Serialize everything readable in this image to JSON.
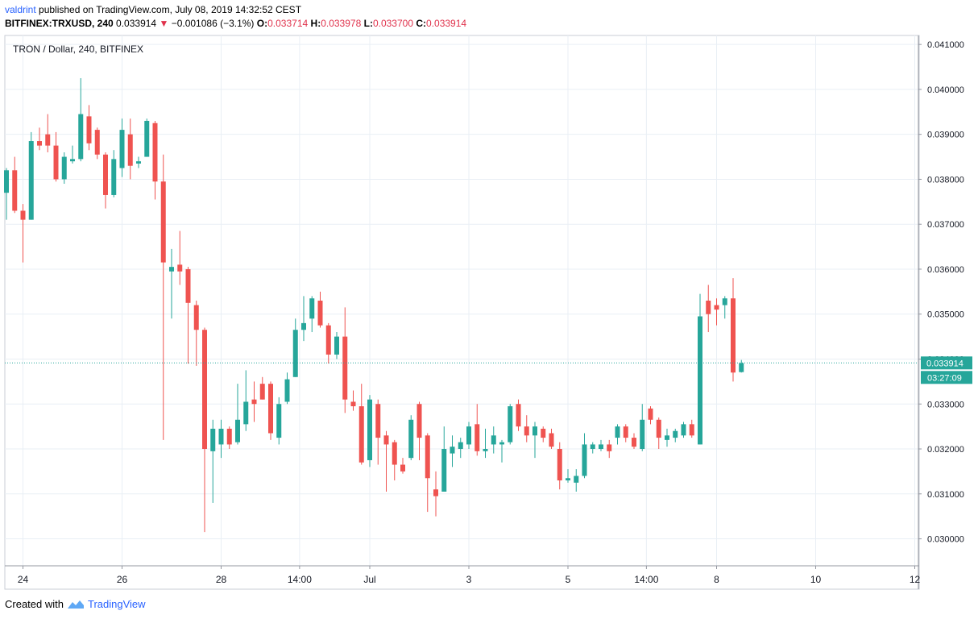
{
  "header": {
    "user": "valdrint",
    "published_text": "published on TradingView.com, July 08, 2019 14:32:52 CEST",
    "symbol": "BITFINEX:TRXUSD, 240",
    "last": "0.033914",
    "change": "−0.001086 (−3.1%)",
    "o_label": "O:",
    "o_value": "0.033714",
    "h_label": "H:",
    "h_value": "0.033978",
    "l_label": "L:",
    "l_value": "0.033700",
    "c_label": "C:",
    "c_value": "0.033914"
  },
  "chart_title": "TRON / Dollar, 240, BITFINEX",
  "price_tag": {
    "price": "0.033914",
    "countdown": "03:27:09"
  },
  "footer": {
    "created_with": "Created with",
    "brand": "TradingView"
  },
  "colors": {
    "up": "#26a69a",
    "down": "#ef5350",
    "grid": "#e9eff5",
    "axis": "#9598a1"
  },
  "chart_data": {
    "type": "candlestick",
    "title": "TRON / Dollar, 240, BITFINEX",
    "ylim": [
      0.0294,
      0.0412
    ],
    "y_ticks": [
      "0.030000",
      "0.031000",
      "0.032000",
      "0.033000",
      "0.034000",
      "0.035000",
      "0.036000",
      "0.037000",
      "0.038000",
      "0.039000",
      "0.040000",
      "0.041000"
    ],
    "x_ticks": [
      {
        "label": "24",
        "index": 2
      },
      {
        "label": "26",
        "index": 14
      },
      {
        "label": "28",
        "index": 26
      },
      {
        "label": "14:00",
        "index": 35.5
      },
      {
        "label": "Jul",
        "index": 44
      },
      {
        "label": "3",
        "index": 56
      },
      {
        "label": "5",
        "index": 68
      },
      {
        "label": "14:00",
        "index": 77.5
      },
      {
        "label": "8",
        "index": 86
      },
      {
        "label": "10",
        "index": 98
      },
      {
        "label": "12",
        "index": 110
      }
    ],
    "last_price": 0.033914,
    "candles": [
      {
        "o": 0.0377,
        "h": 0.03825,
        "l": 0.0371,
        "c": 0.0382
      },
      {
        "o": 0.0382,
        "h": 0.0385,
        "l": 0.03725,
        "c": 0.0373
      },
      {
        "o": 0.0373,
        "h": 0.03745,
        "l": 0.03615,
        "c": 0.0371
      },
      {
        "o": 0.0371,
        "h": 0.03905,
        "l": 0.0371,
        "c": 0.03885
      },
      {
        "o": 0.03885,
        "h": 0.03915,
        "l": 0.03865,
        "c": 0.03875
      },
      {
        "o": 0.039,
        "h": 0.03945,
        "l": 0.0386,
        "c": 0.03875
      },
      {
        "o": 0.03875,
        "h": 0.03905,
        "l": 0.03795,
        "c": 0.038
      },
      {
        "o": 0.038,
        "h": 0.0386,
        "l": 0.0379,
        "c": 0.0385
      },
      {
        "o": 0.0384,
        "h": 0.03875,
        "l": 0.03835,
        "c": 0.03845
      },
      {
        "o": 0.03845,
        "h": 0.04025,
        "l": 0.0384,
        "c": 0.03945
      },
      {
        "o": 0.0394,
        "h": 0.03965,
        "l": 0.03865,
        "c": 0.0388
      },
      {
        "o": 0.0391,
        "h": 0.03915,
        "l": 0.03845,
        "c": 0.03855
      },
      {
        "o": 0.03855,
        "h": 0.0386,
        "l": 0.03735,
        "c": 0.03765
      },
      {
        "o": 0.03765,
        "h": 0.03865,
        "l": 0.0376,
        "c": 0.03845
      },
      {
        "o": 0.03825,
        "h": 0.03935,
        "l": 0.03805,
        "c": 0.0391
      },
      {
        "o": 0.039,
        "h": 0.03935,
        "l": 0.038,
        "c": 0.0383
      },
      {
        "o": 0.03835,
        "h": 0.0385,
        "l": 0.03825,
        "c": 0.0384
      },
      {
        "o": 0.0385,
        "h": 0.03935,
        "l": 0.0385,
        "c": 0.0393
      },
      {
        "o": 0.03925,
        "h": 0.0393,
        "l": 0.03755,
        "c": 0.03795
      },
      {
        "o": 0.03795,
        "h": 0.03855,
        "l": 0.0322,
        "c": 0.03615
      },
      {
        "o": 0.03595,
        "h": 0.03645,
        "l": 0.0349,
        "c": 0.03605
      },
      {
        "o": 0.0361,
        "h": 0.03685,
        "l": 0.03565,
        "c": 0.03595
      },
      {
        "o": 0.036,
        "h": 0.03605,
        "l": 0.0339,
        "c": 0.03525
      },
      {
        "o": 0.0352,
        "h": 0.0353,
        "l": 0.03385,
        "c": 0.03465
      },
      {
        "o": 0.03465,
        "h": 0.0347,
        "l": 0.03015,
        "c": 0.032
      },
      {
        "o": 0.03195,
        "h": 0.03265,
        "l": 0.0308,
        "c": 0.03245
      },
      {
        "o": 0.0321,
        "h": 0.03265,
        "l": 0.0318,
        "c": 0.03245
      },
      {
        "o": 0.03245,
        "h": 0.0325,
        "l": 0.032,
        "c": 0.0321
      },
      {
        "o": 0.03215,
        "h": 0.03345,
        "l": 0.0321,
        "c": 0.03265
      },
      {
        "o": 0.03255,
        "h": 0.03375,
        "l": 0.0324,
        "c": 0.03305
      },
      {
        "o": 0.0331,
        "h": 0.0335,
        "l": 0.0326,
        "c": 0.033
      },
      {
        "o": 0.03345,
        "h": 0.0336,
        "l": 0.0331,
        "c": 0.0331
      },
      {
        "o": 0.03345,
        "h": 0.0335,
        "l": 0.0322,
        "c": 0.03235
      },
      {
        "o": 0.03225,
        "h": 0.03315,
        "l": 0.0321,
        "c": 0.033
      },
      {
        "o": 0.03305,
        "h": 0.0337,
        "l": 0.033,
        "c": 0.03355
      },
      {
        "o": 0.0336,
        "h": 0.0349,
        "l": 0.0336,
        "c": 0.03465
      },
      {
        "o": 0.03465,
        "h": 0.0354,
        "l": 0.0344,
        "c": 0.0348
      },
      {
        "o": 0.0349,
        "h": 0.0354,
        "l": 0.0346,
        "c": 0.03535
      },
      {
        "o": 0.0353,
        "h": 0.0355,
        "l": 0.0347,
        "c": 0.03475
      },
      {
        "o": 0.03475,
        "h": 0.0348,
        "l": 0.0339,
        "c": 0.0341
      },
      {
        "o": 0.0341,
        "h": 0.0346,
        "l": 0.034,
        "c": 0.0345
      },
      {
        "o": 0.0345,
        "h": 0.03515,
        "l": 0.0328,
        "c": 0.0331
      },
      {
        "o": 0.03305,
        "h": 0.0333,
        "l": 0.03285,
        "c": 0.03295
      },
      {
        "o": 0.03295,
        "h": 0.03345,
        "l": 0.03165,
        "c": 0.0317
      },
      {
        "o": 0.03175,
        "h": 0.0332,
        "l": 0.0316,
        "c": 0.0331
      },
      {
        "o": 0.033,
        "h": 0.0331,
        "l": 0.03165,
        "c": 0.03225
      },
      {
        "o": 0.0323,
        "h": 0.0324,
        "l": 0.03105,
        "c": 0.0321
      },
      {
        "o": 0.03215,
        "h": 0.0322,
        "l": 0.0313,
        "c": 0.03165
      },
      {
        "o": 0.03165,
        "h": 0.0318,
        "l": 0.03145,
        "c": 0.0315
      },
      {
        "o": 0.0318,
        "h": 0.03275,
        "l": 0.03175,
        "c": 0.03265
      },
      {
        "o": 0.033,
        "h": 0.03305,
        "l": 0.03175,
        "c": 0.03225
      },
      {
        "o": 0.0323,
        "h": 0.03235,
        "l": 0.0306,
        "c": 0.03135
      },
      {
        "o": 0.0311,
        "h": 0.0315,
        "l": 0.0305,
        "c": 0.03095
      },
      {
        "o": 0.03105,
        "h": 0.0325,
        "l": 0.03105,
        "c": 0.032
      },
      {
        "o": 0.0319,
        "h": 0.0323,
        "l": 0.0316,
        "c": 0.03205
      },
      {
        "o": 0.032,
        "h": 0.03225,
        "l": 0.0318,
        "c": 0.03215
      },
      {
        "o": 0.0321,
        "h": 0.0326,
        "l": 0.032,
        "c": 0.0325
      },
      {
        "o": 0.03255,
        "h": 0.033,
        "l": 0.03185,
        "c": 0.03195
      },
      {
        "o": 0.03195,
        "h": 0.03245,
        "l": 0.0318,
        "c": 0.032
      },
      {
        "o": 0.0321,
        "h": 0.0325,
        "l": 0.0319,
        "c": 0.0323
      },
      {
        "o": 0.0321,
        "h": 0.0322,
        "l": 0.0317,
        "c": 0.03215
      },
      {
        "o": 0.03215,
        "h": 0.033,
        "l": 0.0321,
        "c": 0.03295
      },
      {
        "o": 0.033,
        "h": 0.0331,
        "l": 0.0324,
        "c": 0.0325
      },
      {
        "o": 0.0325,
        "h": 0.03275,
        "l": 0.03215,
        "c": 0.0323
      },
      {
        "o": 0.0323,
        "h": 0.0326,
        "l": 0.0318,
        "c": 0.0325
      },
      {
        "o": 0.03245,
        "h": 0.0325,
        "l": 0.03215,
        "c": 0.03225
      },
      {
        "o": 0.03235,
        "h": 0.03245,
        "l": 0.032,
        "c": 0.03205
      },
      {
        "o": 0.032,
        "h": 0.03215,
        "l": 0.0311,
        "c": 0.0313
      },
      {
        "o": 0.0313,
        "h": 0.03155,
        "l": 0.03125,
        "c": 0.03135
      },
      {
        "o": 0.03125,
        "h": 0.03155,
        "l": 0.03105,
        "c": 0.0314
      },
      {
        "o": 0.0314,
        "h": 0.03235,
        "l": 0.03135,
        "c": 0.0321
      },
      {
        "o": 0.032,
        "h": 0.03215,
        "l": 0.0319,
        "c": 0.0321
      },
      {
        "o": 0.032,
        "h": 0.0322,
        "l": 0.03195,
        "c": 0.0321
      },
      {
        "o": 0.0321,
        "h": 0.0322,
        "l": 0.0318,
        "c": 0.03195
      },
      {
        "o": 0.03225,
        "h": 0.03255,
        "l": 0.0321,
        "c": 0.0325
      },
      {
        "o": 0.0325,
        "h": 0.03255,
        "l": 0.03215,
        "c": 0.03225
      },
      {
        "o": 0.03225,
        "h": 0.03235,
        "l": 0.032,
        "c": 0.03205
      },
      {
        "o": 0.032,
        "h": 0.033,
        "l": 0.03195,
        "c": 0.03265
      },
      {
        "o": 0.0329,
        "h": 0.03295,
        "l": 0.03255,
        "c": 0.03265
      },
      {
        "o": 0.03265,
        "h": 0.0327,
        "l": 0.032,
        "c": 0.03225
      },
      {
        "o": 0.0322,
        "h": 0.03245,
        "l": 0.03205,
        "c": 0.0323
      },
      {
        "o": 0.03225,
        "h": 0.03245,
        "l": 0.03215,
        "c": 0.0324
      },
      {
        "o": 0.0323,
        "h": 0.0326,
        "l": 0.03225,
        "c": 0.03255
      },
      {
        "o": 0.03255,
        "h": 0.03265,
        "l": 0.03225,
        "c": 0.0323
      },
      {
        "o": 0.0321,
        "h": 0.03545,
        "l": 0.0321,
        "c": 0.03495
      },
      {
        "o": 0.0353,
        "h": 0.03565,
        "l": 0.0346,
        "c": 0.035
      },
      {
        "o": 0.0352,
        "h": 0.03535,
        "l": 0.03475,
        "c": 0.0351
      },
      {
        "o": 0.0352,
        "h": 0.0354,
        "l": 0.0349,
        "c": 0.03535
      },
      {
        "o": 0.03535,
        "h": 0.0358,
        "l": 0.0335,
        "c": 0.0337
      },
      {
        "o": 0.03371,
        "h": 0.03398,
        "l": 0.0337,
        "c": 0.03391
      }
    ]
  }
}
